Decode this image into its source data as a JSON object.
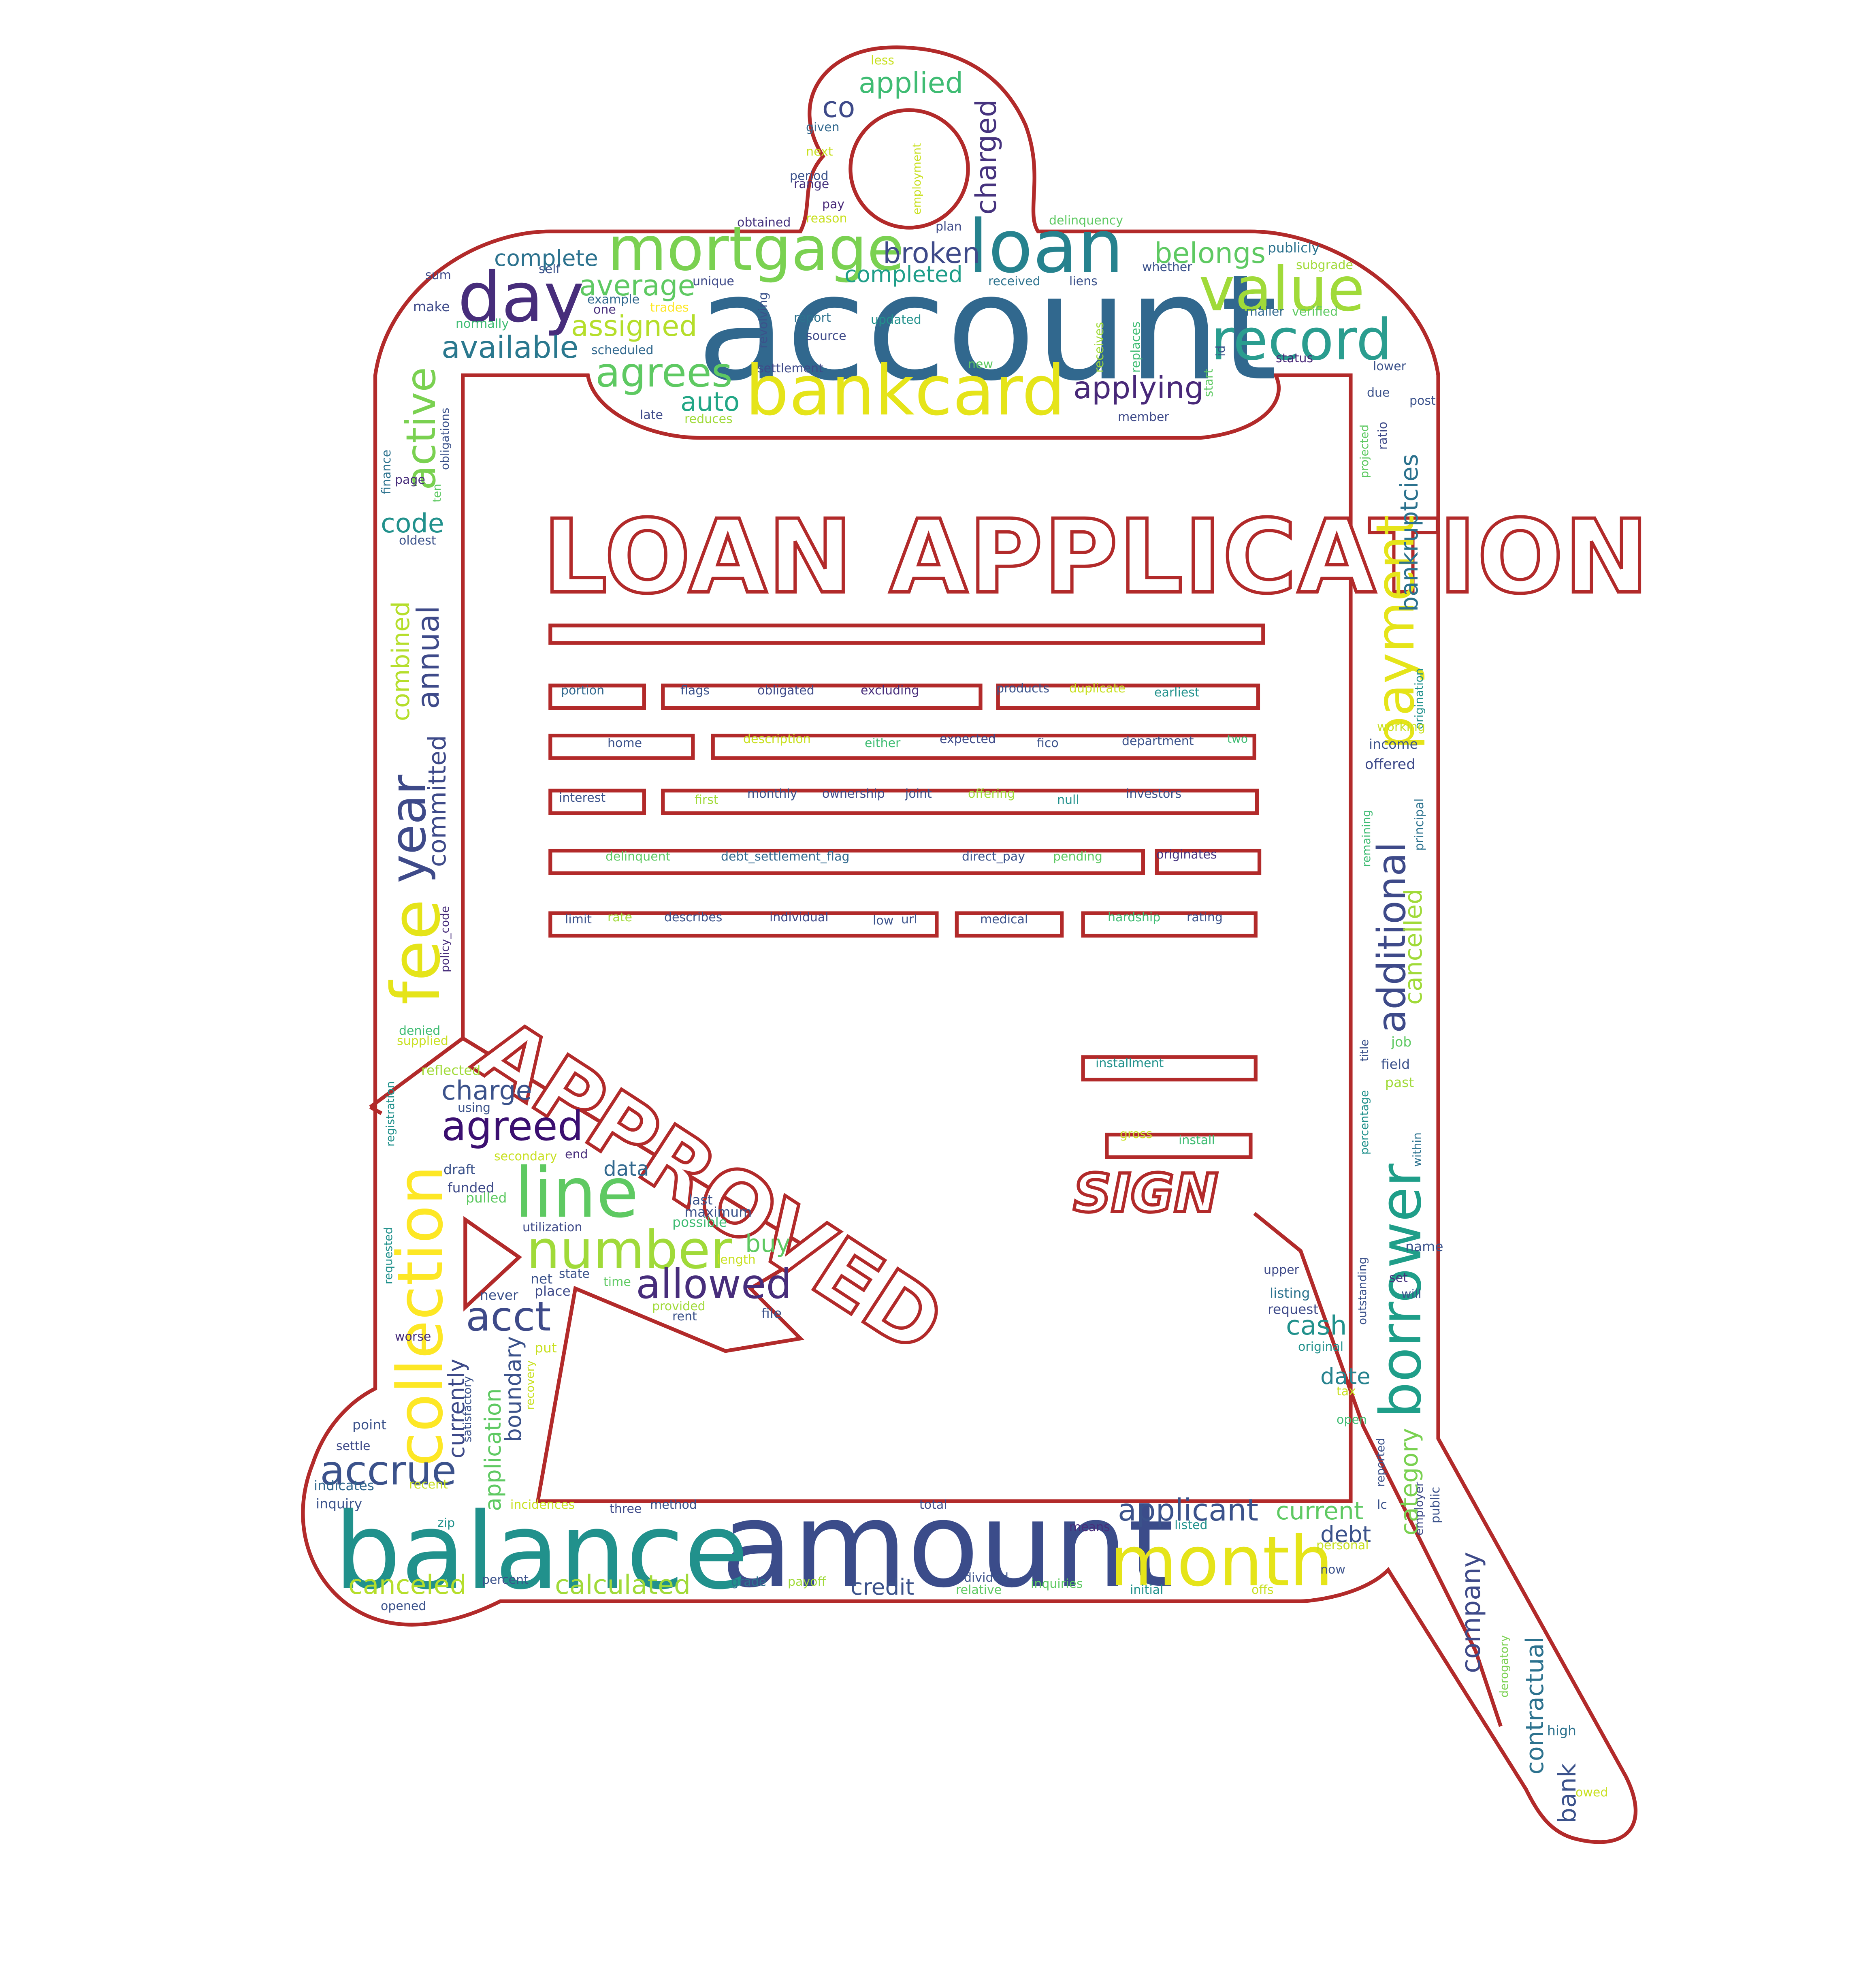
{
  "title": "LOAN APPLICATION",
  "stamp": "APPROVED",
  "sign": "SIGN",
  "words": {
    "account": "account",
    "amount": "amount",
    "balance": "balance",
    "bankcard": "bankcard",
    "loan": "loan",
    "mortgage": "mortgage",
    "day": "day",
    "value": "value",
    "record": "record",
    "month": "month",
    "collection": "collection",
    "fee": "fee",
    "year": "year",
    "line": "line",
    "number": "number",
    "borrower": "borrower",
    "payment": "payment",
    "additional": "additional",
    "agrees": "agrees",
    "allowed": "allowed",
    "agreed": "agreed",
    "acct": "acct",
    "accrue": "accrue",
    "active": "active",
    "applicant": "applicant",
    "applying": "applying",
    "available": "available",
    "assigned": "assigned",
    "average": "average",
    "broken": "broken",
    "belongs": "belongs",
    "complete": "complete",
    "completed": "completed",
    "auto": "auto",
    "applied": "applied",
    "co": "co",
    "charged": "charged",
    "annual": "annual",
    "combined": "combined",
    "committed": "committed",
    "code": "code",
    "charge": "charge",
    "data": "data",
    "buy": "buy",
    "canceled": "canceled",
    "calculated": "calculated",
    "credit": "credit",
    "current": "current",
    "debt": "debt",
    "cash": "cash",
    "date": "date",
    "company": "company",
    "contractual": "contractual",
    "bank": "bank",
    "bankruptcies": "bankruptcies",
    "cancelled": "cancelled",
    "category": "category",
    "currently": "currently",
    "application": "application",
    "boundary": "boundary",
    "less": "less",
    "given": "given",
    "next": "next",
    "period": "period",
    "range": "range",
    "pay": "pay",
    "obtained": "obtained",
    "reason": "reason",
    "plan": "plan",
    "employment": "employment",
    "delinquency": "delinquency",
    "unique": "unique",
    "example": "example",
    "one": "one",
    "trades": "trades",
    "report": "report",
    "source": "source",
    "updated": "updated",
    "revolving": "revolving",
    "received": "received",
    "liens": "liens",
    "whether": "whether",
    "publicly": "publicly",
    "subgrade": "subgrade",
    "smaller": "smaller",
    "verified": "verified",
    "status": "status",
    "lower": "lower",
    "receives": "receives",
    "replaces": "replaces",
    "start": "start",
    "id": "id",
    "new": "new",
    "settlement": "settlement",
    "late": "late",
    "reduces": "reduces",
    "member": "member",
    "sum": "sum",
    "self": "self",
    "make": "make",
    "normally": "normally",
    "scheduled": "scheduled",
    "page": "page",
    "ten": "ten",
    "obligations": "obligations",
    "finance": "finance",
    "oldest": "oldest",
    "due": "due",
    "post": "post",
    "projected": "projected",
    "ratio": "ratio",
    "origination": "origination",
    "working": "working",
    "income": "income",
    "offered": "offered",
    "principal": "principal",
    "remaining": "remaining",
    "job": "job",
    "field": "field",
    "past": "past",
    "title_w": "title",
    "percentage": "percentage",
    "within": "within",
    "name": "name",
    "set": "set",
    "will": "will",
    "outstanding": "outstanding",
    "upper": "upper",
    "listing": "listing",
    "request": "request",
    "original": "original",
    "tax": "tax",
    "open": "open",
    "reported": "reported",
    "lc": "lc",
    "public": "public",
    "employer": "employer",
    "personal": "personal",
    "now": "now",
    "high": "high",
    "owed": "owed",
    "derogatory": "derogatory",
    "denied": "denied",
    "supplied": "supplied",
    "policy_code": "policy_code",
    "registration": "registration",
    "reflected": "reflected",
    "using": "using",
    "secondary": "secondary",
    "end": "end",
    "draft": "draft",
    "funded": "funded",
    "pulled": "pulled",
    "requested": "requested",
    "utilization": "utilization",
    "last": "last",
    "maximum": "maximum",
    "possible": "possible",
    "length": "length",
    "net": "net",
    "state": "state",
    "time": "time",
    "place": "place",
    "never": "never",
    "provided": "provided",
    "rent": "rent",
    "file": "file",
    "worse": "worse",
    "put": "put",
    "satisfactory": "satisfactory",
    "recovery": "recovery",
    "point": "point",
    "settle": "settle",
    "indicates": "indicates",
    "recent": "recent",
    "inquiry": "inquiry",
    "zip": "zip",
    "incidences": "incidences",
    "three": "three",
    "method": "method",
    "total": "total",
    "means": "means",
    "listed": "listed",
    "percent": "percent",
    "opened": "opened",
    "grade": "grade",
    "payoff": "payoff",
    "divided": "divided",
    "relative": "relative",
    "inquiries": "inquiries",
    "initial": "initial",
    "offs": "offs",
    "portion": "portion",
    "flags": "flags",
    "obligated": "obligated",
    "excluding": "excluding",
    "products": "products",
    "duplicate": "duplicate",
    "earliest": "earliest",
    "home": "home",
    "description": "description",
    "either": "either",
    "expected": "expected",
    "fico": "fico",
    "department": "department",
    "two": "two",
    "interest": "interest",
    "first": "first",
    "monthly": "monthly",
    "ownership": "ownership",
    "joint": "joint",
    "offering": "offering",
    "null": "null",
    "investors": "investors",
    "delinquent": "delinquent",
    "debt_settlement_flag": "debt_settlement_flag",
    "direct_pay": "direct_pay",
    "pending": "pending",
    "originates": "originates",
    "limit": "limit",
    "rate": "rate",
    "describes": "describes",
    "individual": "individual",
    "low": "low",
    "url": "url",
    "medical": "medical",
    "hardship": "hardship",
    "rating": "rating",
    "installment": "installment",
    "gross": "gross",
    "install": "install"
  }
}
